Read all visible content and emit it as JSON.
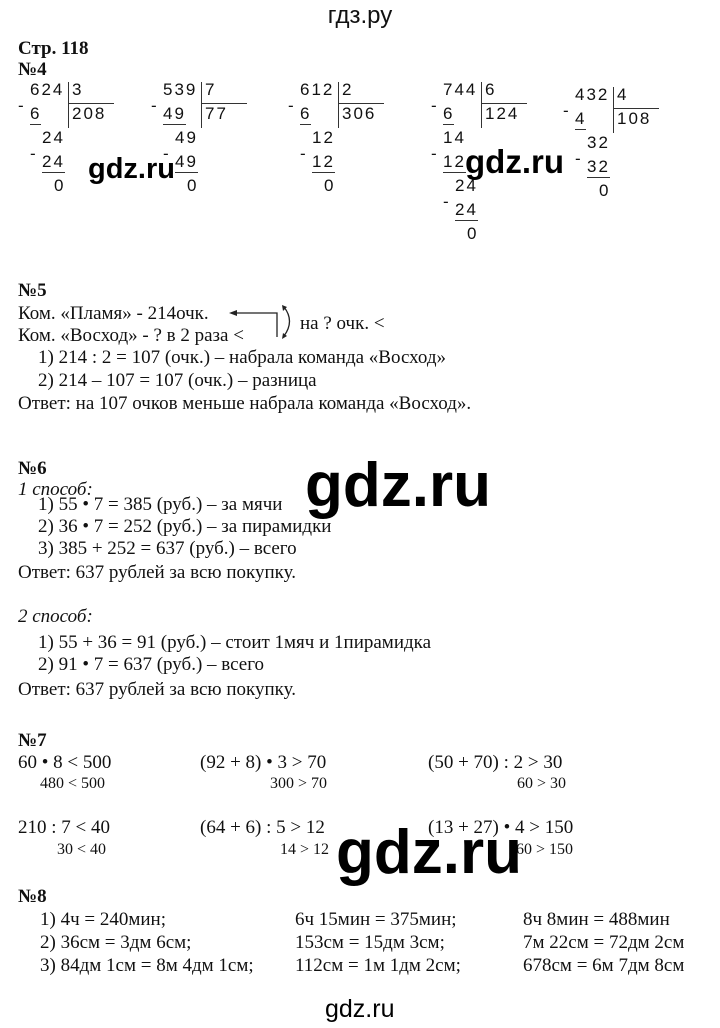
{
  "header": {
    "site": "гдз.ру"
  },
  "page_label": "Стр. 118",
  "task4": {
    "number": "№4",
    "divisions": [
      {
        "dividend": "624",
        "divisor": "3",
        "quotient": "208",
        "steps": [
          "6",
          "24",
          "24",
          "0"
        ]
      },
      {
        "dividend": "539",
        "divisor": "7",
        "quotient": "77",
        "steps": [
          "49",
          "49",
          "49",
          "0"
        ]
      },
      {
        "dividend": "612",
        "divisor": "2",
        "quotient": "306",
        "steps": [
          "6",
          "12",
          "12",
          "0"
        ]
      },
      {
        "dividend": "744",
        "divisor": "6",
        "quotient": "124",
        "steps": [
          "6",
          "14",
          "12",
          "24",
          "24",
          "0"
        ]
      },
      {
        "dividend": "432",
        "divisor": "4",
        "quotient": "108",
        "steps": [
          "4",
          "32",
          "32",
          "0"
        ]
      }
    ]
  },
  "task5": {
    "number": "№5",
    "line1": "Ком. «Пламя» - 214очк.",
    "line2": "Ком. «Восход» - ? в 2 раза <",
    "bracket_label": "на ? очк. <",
    "steps": [
      "1) 214 : 2 = 107 (очк.) – набрала команда «Восход»",
      "2) 214 – 107 = 107 (очк.) – разница"
    ],
    "answer": "Ответ: на 107 очков меньше набрала команда «Восход»."
  },
  "task6": {
    "number": "№6",
    "method1": {
      "title": "1 способ:",
      "steps": [
        "1) 55 • 7 = 385 (руб.) – за мячи",
        "2) 36 • 7 = 252 (руб.) – за пирамидки",
        "3) 385 + 252 = 637 (руб.) – всего"
      ],
      "answer": "Ответ: 637 рублей за всю покупку."
    },
    "method2": {
      "title": "2 способ:",
      "steps": [
        "1) 55 + 36 = 91 (руб.) – стоит 1мяч и 1пирамидка",
        "2) 91 • 7 = 637 (руб.) – всего"
      ],
      "answer": "Ответ: 637 рублей за всю покупку."
    }
  },
  "task7": {
    "number": "№7",
    "items": [
      {
        "expr": "60 • 8 < 500",
        "result": "480 < 500"
      },
      {
        "expr": "(92 + 8) • 3 > 70",
        "result": "300 > 70"
      },
      {
        "expr": "(50 + 70) : 2 > 30",
        "result": "60 > 30"
      },
      {
        "expr": "210 : 7 < 40",
        "result": "30 < 40"
      },
      {
        "expr": "(64 + 6) : 5 > 12",
        "result": "14 > 12"
      },
      {
        "expr": "(13 + 27) • 4 > 150",
        "result": "160 > 150"
      }
    ]
  },
  "task8": {
    "number": "№8",
    "rows": [
      [
        "1) 4ч = 240мин;",
        "6ч 15мин = 375мин;",
        "8ч 8мин = 488мин"
      ],
      [
        "2) 36см = 3дм 6см;",
        "153см = 15дм 3см;",
        "7м 22см = 72дм 2см"
      ],
      [
        "3) 84дм 1см = 8м 4дм 1см;",
        "112см = 1м 1дм 2см;",
        "678см = 6м 7дм 8см"
      ]
    ]
  },
  "watermarks": [
    "gdz.ru",
    "gdz.ru",
    "gdz.ru",
    "gdz.ru",
    "gdz.ru"
  ]
}
